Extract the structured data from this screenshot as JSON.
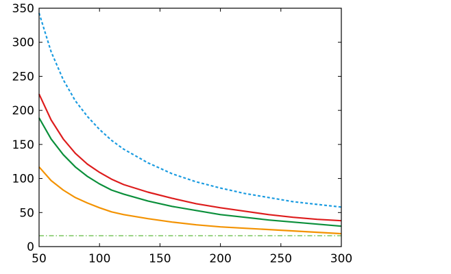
{
  "chart_data": {
    "type": "line",
    "title": "",
    "xlabel": "",
    "ylabel": "",
    "xlim": [
      50,
      300
    ],
    "ylim": [
      0,
      350
    ],
    "x_ticks": [
      50,
      100,
      150,
      200,
      250,
      300
    ],
    "y_ticks": [
      0,
      50,
      100,
      150,
      200,
      250,
      300,
      350
    ],
    "grid": false,
    "legend": "none",
    "x": [
      50,
      60,
      70,
      80,
      90,
      100,
      110,
      120,
      140,
      160,
      180,
      200,
      220,
      240,
      260,
      280,
      300
    ],
    "series": [
      {
        "color": "#1a9be0",
        "style": "dashed",
        "values": [
          343,
          286,
          245,
          214,
          191,
          172,
          156,
          143,
          123,
          107,
          95,
          86,
          78,
          72,
          66,
          62,
          58
        ]
      },
      {
        "color": "#dd1c1c",
        "style": "solid",
        "values": [
          224,
          186,
          158,
          137,
          121,
          109,
          99,
          91,
          80,
          71,
          63,
          57,
          52,
          47,
          43,
          40,
          38
        ]
      },
      {
        "color": "#0a8f3a",
        "style": "solid",
        "values": [
          189,
          158,
          135,
          117,
          103,
          92,
          83,
          77,
          67,
          59,
          53,
          47,
          43,
          39,
          36,
          33,
          30
        ]
      },
      {
        "color": "#f39200",
        "style": "solid",
        "values": [
          117,
          97,
          83,
          72,
          64,
          57,
          51,
          47,
          41,
          36,
          32,
          29,
          27,
          25,
          23,
          21,
          19
        ]
      },
      {
        "color": "#5db83a",
        "style": "dashdot",
        "values": [
          16,
          16,
          16,
          16,
          16,
          16,
          16,
          16,
          16,
          16,
          16,
          16,
          16,
          16,
          16,
          16,
          16
        ]
      }
    ]
  }
}
